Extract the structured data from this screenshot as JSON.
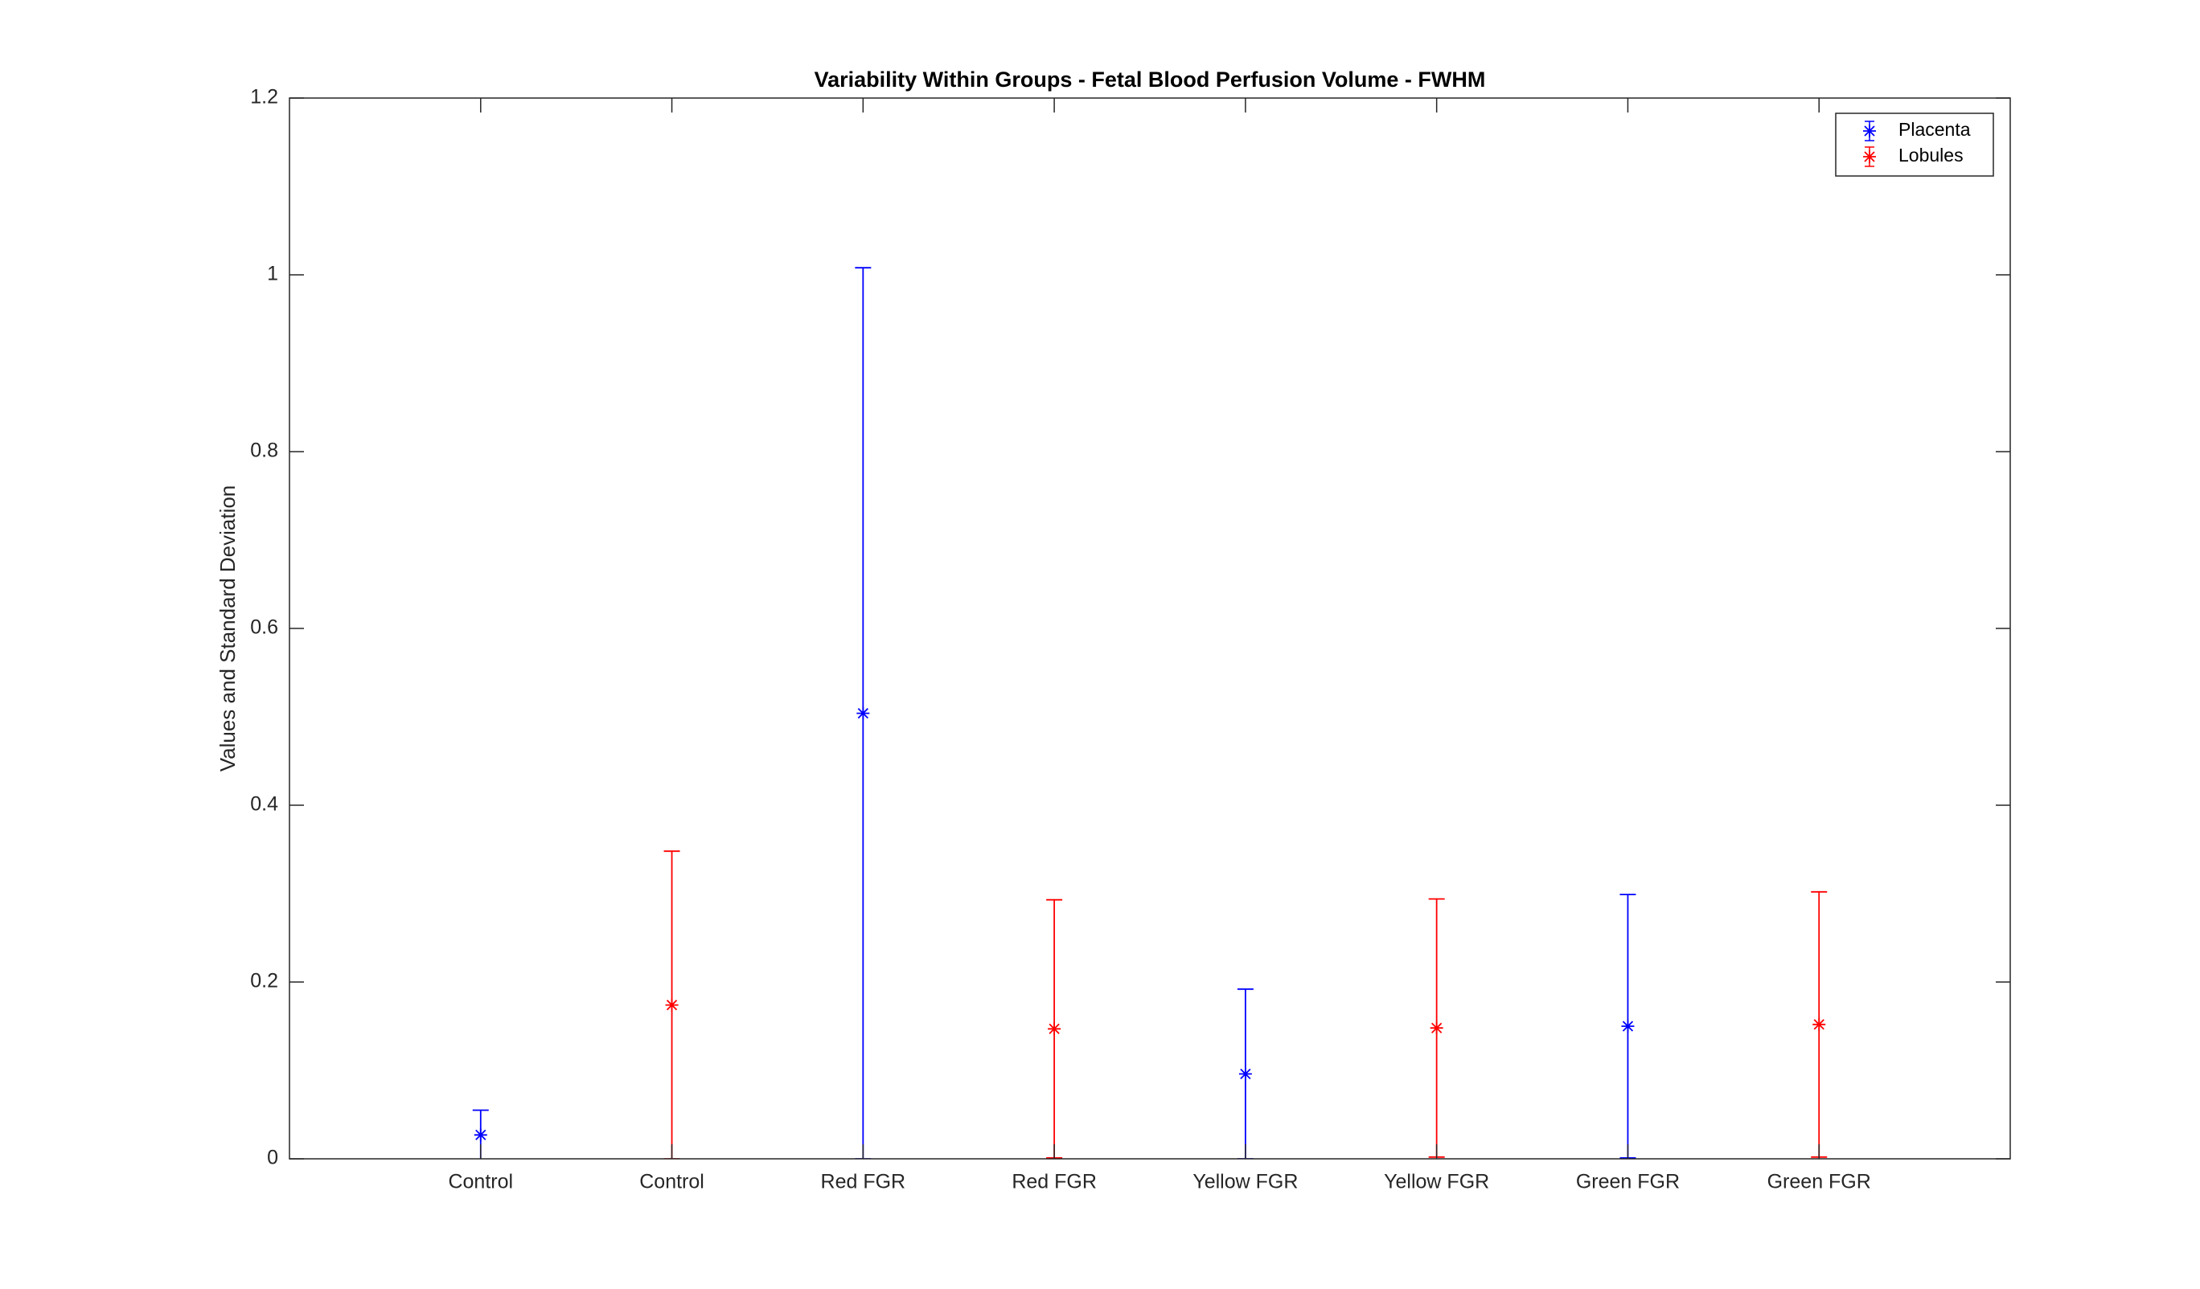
{
  "chart_data": {
    "type": "errorbar",
    "title": "Variability Within Groups - Fetal Blood Perfusion Volume - FWHM",
    "y_label": "Values and Standard Deviation",
    "categories": [
      "Control",
      "Control",
      "Red FGR",
      "Red FGR",
      "Yellow FGR",
      "Yellow FGR",
      "Green FGR",
      "Green FGR"
    ],
    "series": [
      {
        "name": "Placenta",
        "color": "#0000ff",
        "values": [
          0.027,
          null,
          0.504,
          null,
          0.096,
          null,
          0.15,
          null
        ],
        "errors": [
          0.028,
          null,
          0.504,
          null,
          0.096,
          null,
          0.149,
          null
        ]
      },
      {
        "name": "Lobules",
        "color": "#ff0000",
        "values": [
          null,
          0.174,
          null,
          0.147,
          null,
          0.148,
          null,
          0.152
        ],
        "errors": [
          null,
          0.174,
          null,
          0.146,
          null,
          0.146,
          null,
          0.15
        ]
      }
    ],
    "ylim": [
      0,
      1.2
    ],
    "yticks": [
      0,
      0.2,
      0.4,
      0.6,
      0.8,
      1,
      1.2
    ],
    "legend_position": "upper-right"
  }
}
